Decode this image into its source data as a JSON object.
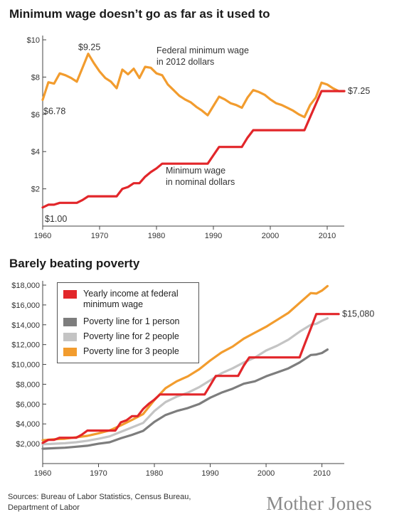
{
  "chart_data": [
    {
      "type": "line",
      "title": "Minimum wage doesn’t go as far as it used to",
      "xlim": [
        1960,
        2013
      ],
      "ylim": [
        0,
        10
      ],
      "x_ticks": [
        "1960",
        "1970",
        "1980",
        "1990",
        "2000",
        "2010"
      ],
      "y_ticks": [
        "$2",
        "$4",
        "$6",
        "$8",
        "$10"
      ],
      "grid": false,
      "series": [
        {
          "name": "Federal minimum wage in 2012 dollars",
          "name_lines": [
            "Federal minimum wage",
            "in 2012 dollars"
          ],
          "color": "#f29c2e",
          "x": [
            1960,
            1961,
            1962,
            1963,
            1964,
            1965,
            1966,
            1967,
            1968,
            1969,
            1970,
            1971,
            1972,
            1973,
            1974,
            1975,
            1976,
            1977,
            1978,
            1979,
            1980,
            1981,
            1982,
            1983,
            1984,
            1985,
            1986,
            1987,
            1988,
            1989,
            1990,
            1991,
            1992,
            1993,
            1994,
            1995,
            1996,
            1997,
            1998,
            1999,
            2000,
            2001,
            2002,
            2003,
            2004,
            2005,
            2006,
            2007,
            2008,
            2009,
            2010,
            2011,
            2012,
            2013
          ],
          "y": [
            6.78,
            7.72,
            7.65,
            8.2,
            8.1,
            7.95,
            7.75,
            8.5,
            9.25,
            8.75,
            8.3,
            7.95,
            7.75,
            7.4,
            8.4,
            8.15,
            8.45,
            7.95,
            8.55,
            8.5,
            8.2,
            8.1,
            7.6,
            7.3,
            7.0,
            6.8,
            6.65,
            6.4,
            6.2,
            5.95,
            6.45,
            6.95,
            6.8,
            6.6,
            6.5,
            6.35,
            6.9,
            7.3,
            7.2,
            7.05,
            6.8,
            6.6,
            6.5,
            6.35,
            6.2,
            6.0,
            5.85,
            6.5,
            6.9,
            7.7,
            7.6,
            7.4,
            7.25,
            7.25
          ],
          "labels": {
            "start": "$6.78",
            "peak": "$9.25",
            "end": "$7.25"
          }
        },
        {
          "name": "Minimum wage in nominal dollars",
          "name_lines": [
            "Minimum wage",
            "in nominal dollars"
          ],
          "color": "#e2262a",
          "x": [
            1960,
            1961,
            1962,
            1963,
            1964,
            1965,
            1966,
            1967,
            1968,
            1969,
            1970,
            1971,
            1972,
            1973,
            1974,
            1975,
            1976,
            1977,
            1978,
            1979,
            1980,
            1981,
            1982,
            1983,
            1984,
            1985,
            1986,
            1987,
            1988,
            1989,
            1990,
            1991,
            1992,
            1993,
            1994,
            1995,
            1996,
            1997,
            1998,
            1999,
            2000,
            2001,
            2002,
            2003,
            2004,
            2005,
            2006,
            2007,
            2008,
            2009,
            2010,
            2011,
            2012,
            2013
          ],
          "y": [
            1.0,
            1.15,
            1.15,
            1.25,
            1.25,
            1.25,
            1.25,
            1.4,
            1.6,
            1.6,
            1.6,
            1.6,
            1.6,
            1.6,
            2.0,
            2.1,
            2.3,
            2.3,
            2.65,
            2.9,
            3.1,
            3.35,
            3.35,
            3.35,
            3.35,
            3.35,
            3.35,
            3.35,
            3.35,
            3.35,
            3.8,
            4.25,
            4.25,
            4.25,
            4.25,
            4.25,
            4.75,
            5.15,
            5.15,
            5.15,
            5.15,
            5.15,
            5.15,
            5.15,
            5.15,
            5.15,
            5.15,
            5.85,
            6.55,
            7.25,
            7.25,
            7.25,
            7.25,
            7.25
          ],
          "labels": {
            "start": "$1.00"
          }
        }
      ]
    },
    {
      "type": "line",
      "title": "Barely beating poverty",
      "xlim": [
        1960,
        2014
      ],
      "ylim": [
        0,
        18000
      ],
      "x_ticks": [
        "1960",
        "1970",
        "1980",
        "1990",
        "2000",
        "2010"
      ],
      "y_ticks": [
        "$2,000",
        "$4,000",
        "$6,000",
        "$8,000",
        "$10,000",
        "$12,000",
        "$14,000",
        "$16,000",
        "$18,000"
      ],
      "grid": false,
      "legend": "top-left",
      "series": [
        {
          "name": "Yearly income at federal minimum wage",
          "color": "#e2262a",
          "x": [
            1960,
            1961,
            1962,
            1963,
            1964,
            1965,
            1966,
            1967,
            1968,
            1969,
            1970,
            1971,
            1972,
            1973,
            1974,
            1975,
            1976,
            1977,
            1978,
            1979,
            1980,
            1981,
            1982,
            1983,
            1984,
            1985,
            1986,
            1987,
            1988,
            1989,
            1990,
            1991,
            1992,
            1993,
            1994,
            1995,
            1996,
            1997,
            1998,
            1999,
            2000,
            2001,
            2002,
            2003,
            2004,
            2005,
            2006,
            2007,
            2008,
            2009,
            2010,
            2011,
            2012,
            2013
          ],
          "y": [
            2080,
            2390,
            2390,
            2600,
            2600,
            2600,
            2600,
            2910,
            3330,
            3330,
            3330,
            3330,
            3330,
            3330,
            4160,
            4370,
            4780,
            4780,
            5510,
            6030,
            6450,
            6970,
            6970,
            6970,
            6970,
            6970,
            6970,
            6970,
            6970,
            6970,
            7900,
            8840,
            8840,
            8840,
            8840,
            8840,
            9880,
            10710,
            10710,
            10710,
            10710,
            10710,
            10710,
            10710,
            10710,
            10710,
            10710,
            12170,
            13620,
            15080,
            15080,
            15080,
            15080,
            15080
          ],
          "labels": {
            "end": "$15,080"
          }
        },
        {
          "name": "Poverty line for 1 person",
          "color": "#7d7d7d",
          "x": [
            1960,
            1962,
            1964,
            1966,
            1968,
            1970,
            1972,
            1974,
            1976,
            1978,
            1980,
            1982,
            1984,
            1986,
            1988,
            1990,
            1992,
            1994,
            1996,
            1998,
            2000,
            2002,
            2004,
            2006,
            2008,
            2009,
            2010,
            2011
          ],
          "y": [
            1500,
            1550,
            1600,
            1700,
            1800,
            2000,
            2150,
            2550,
            2900,
            3300,
            4200,
            4900,
            5300,
            5600,
            6000,
            6650,
            7150,
            7550,
            8050,
            8300,
            8800,
            9200,
            9600,
            10200,
            10950,
            11000,
            11150,
            11500
          ]
        },
        {
          "name": "Poverty line for 2 people",
          "color": "#c4c4c4",
          "x": [
            1960,
            1962,
            1964,
            1966,
            1968,
            1970,
            1972,
            1974,
            1976,
            1978,
            1980,
            1982,
            1984,
            1986,
            1988,
            1990,
            1992,
            1994,
            1996,
            1998,
            2000,
            2002,
            2004,
            2006,
            2008,
            2009,
            2010,
            2011
          ],
          "y": [
            1950,
            2000,
            2050,
            2150,
            2300,
            2500,
            2750,
            3200,
            3650,
            4100,
            5300,
            6200,
            6750,
            7150,
            7700,
            8400,
            9100,
            9600,
            10200,
            10700,
            11400,
            11900,
            12500,
            13300,
            14000,
            14100,
            14400,
            14650
          ]
        },
        {
          "name": "Poverty line for 3 people",
          "color": "#f29c2e",
          "x": [
            1960,
            1962,
            1964,
            1966,
            1968,
            1970,
            1972,
            1974,
            1976,
            1978,
            1980,
            1982,
            1984,
            1986,
            1988,
            1990,
            1992,
            1994,
            1996,
            1998,
            2000,
            2002,
            2004,
            2006,
            2008,
            2009,
            2010,
            2011
          ],
          "y": [
            2350,
            2450,
            2500,
            2650,
            2800,
            3050,
            3350,
            3850,
            4400,
            5000,
            6400,
            7600,
            8300,
            8800,
            9500,
            10400,
            11200,
            11800,
            12600,
            13200,
            13800,
            14500,
            15200,
            16200,
            17200,
            17150,
            17450,
            17900
          ]
        }
      ]
    }
  ],
  "footer": {
    "sources_line1": "Sources: Bureau of Labor Statistics, Census Bureau,",
    "sources_line2": "Department of Labor",
    "brand": "Mother Jones"
  }
}
